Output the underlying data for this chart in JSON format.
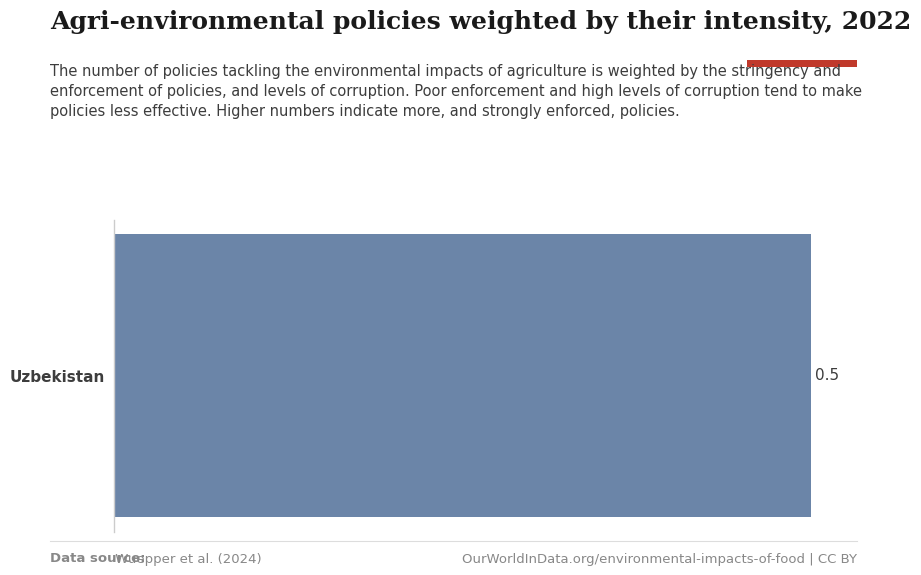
{
  "title": "Agri-environmental policies weighted by their intensity, 2022",
  "subtitle": "The number of policies tackling the environmental impacts of agriculture is weighted by the stringency and\nenforcement of policies, and levels of corruption. Poor enforcement and high levels of corruption tend to make\npolicies less effective. Higher numbers indicate more, and strongly enforced, policies.",
  "country": "Uzbekistan",
  "value": 0.5,
  "bar_color": "#6b85a8",
  "background_color": "#ffffff",
  "data_source_bold": "Data source:",
  "data_source_normal": " Wuepper et al. (2024)",
  "owid_url": "OurWorldInData.org/environmental-impacts-of-food | CC BY",
  "title_fontsize": 18,
  "subtitle_fontsize": 10.5,
  "label_fontsize": 11,
  "footer_fontsize": 9.5,
  "owid_box_color": "#1a3560",
  "owid_box_red": "#c0392b",
  "xlim_max": 0.5,
  "spine_color": "#cccccc",
  "text_color": "#3d3d3d",
  "footer_color": "#888888"
}
